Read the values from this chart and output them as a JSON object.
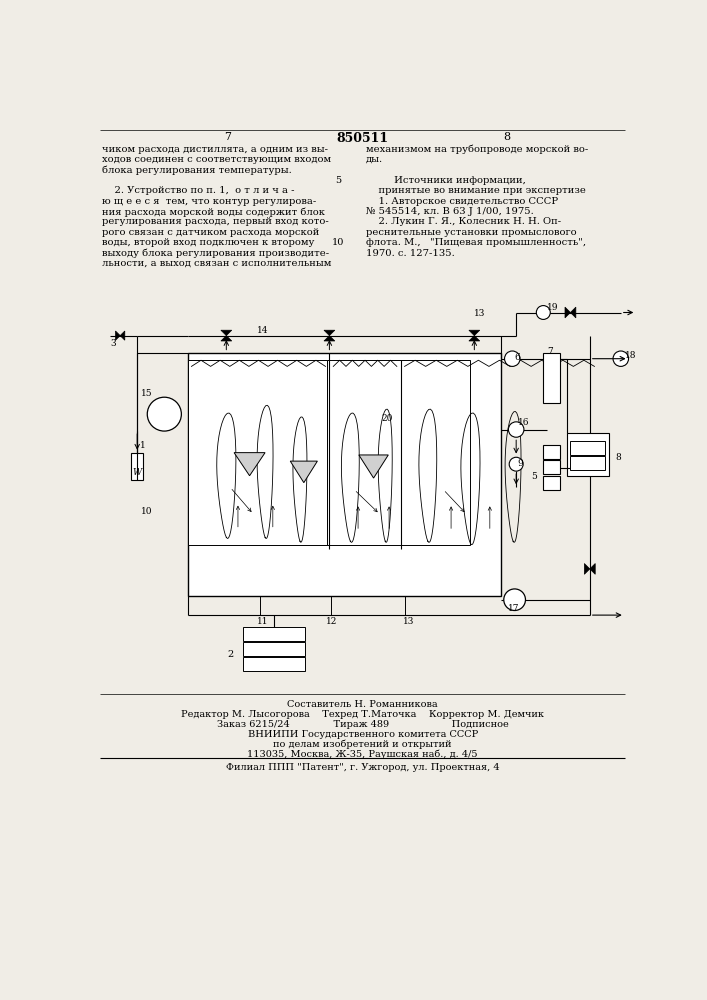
{
  "bg_color": "#f0ede6",
  "page_color": "#f0ede6",
  "title_number": "850511",
  "page_left": "7",
  "page_right": "8",
  "left_column_text": [
    "чиком расхода дистиллята, а одним из вы-",
    "ходов соединен с соответствующим входом",
    "блока регулирования температуры.",
    "",
    "    2. Устройство по п. 1,  о т л и ч а -",
    "ю щ е е с я  тем, что контур регулирова-",
    "ния расхода морской воды содержит блок",
    "регулирования расхода, первый вход кото-",
    "рого связан с датчиком расхода морской",
    "воды, второй вход подключен к второму",
    "выходу блока регулирования производите-",
    "льности, а выход связан с исполнительным"
  ],
  "right_column_text": [
    "механизмом на трубопроводе морской во-",
    "ды.",
    "",
    "         Источники информации,",
    "    принятые во внимание при экспертизе",
    "    1. Авторское свидетельство СССР",
    "№ 545514, кл. В 63 J 1/00, 1975.",
    "    2. Лукин Г. Я., Колесник Н. Н. Оп-",
    "реснительные установки промыслового",
    "флота. М.,   \"Пищевая промышленность\",",
    "1970. с. 127-135."
  ],
  "line_number_5": "5",
  "line_number_10": "10",
  "bottom_credits": [
    "Составитель Н. Романникова",
    "Редактор М. Лысогорова    Техред Т.Маточка    Корректор М. Демчик",
    "Заказ 6215/24              Тираж 489                    Подписное",
    "ВНИИПИ Государственного комитета СССР",
    "по делам изобретений и открытий",
    "113035, Москва, Ж-35, Раушская наб., д. 4/5",
    "",
    "Филиал ППП \"Патент\", г. Ужгород, ул. Проектная, 4"
  ]
}
